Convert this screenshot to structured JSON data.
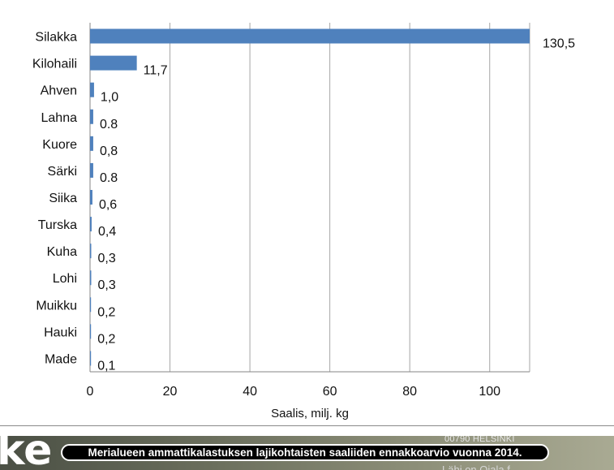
{
  "chart_data": {
    "type": "bar",
    "orientation": "horizontal",
    "categories": [
      "Silakka",
      "Kilohaili",
      "Ahven",
      "Lahna",
      "Kuore",
      "Särki",
      "Siika",
      "Turska",
      "Kuha",
      "Lohi",
      "Muikku",
      "Hauki",
      "Made"
    ],
    "values": [
      130.5,
      11.7,
      1.0,
      0.8,
      0.8,
      0.8,
      0.6,
      0.4,
      0.3,
      0.3,
      0.2,
      0.2,
      0.1
    ],
    "value_labels": [
      "130,5",
      "11,7",
      "1,0",
      "0.8",
      "0,8",
      "0.8",
      "0,6",
      "0,4",
      "0,3",
      "0,3",
      "0,2",
      "0,2",
      "0,1"
    ],
    "xlabel": "Saalis, milj. kg",
    "ylabel": "",
    "xlim": [
      0,
      110
    ],
    "xticks": [
      0,
      20,
      40,
      60,
      80,
      100
    ],
    "grid": true,
    "bar_color": "#4f81bd",
    "grid_color": "#a6a6a6"
  },
  "footer": {
    "caption": "Merialueen ammattikalastuksen lajikohtaisten saaliiden ennakkoarvio vuonna 2014.",
    "logo_fragment": "ke",
    "address_fragment": "00790 HELSINKI",
    "faint_text": "Lähi on Ojala f"
  }
}
